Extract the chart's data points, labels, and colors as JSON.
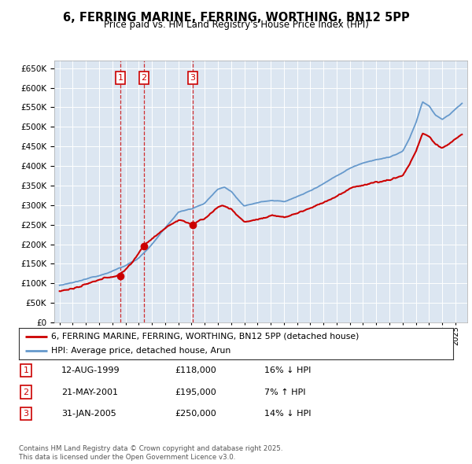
{
  "title": "6, FERRING MARINE, FERRING, WORTHING, BN12 5PP",
  "subtitle": "Price paid vs. HM Land Registry's House Price Index (HPI)",
  "legend_line1": "6, FERRING MARINE, FERRING, WORTHING, BN12 5PP (detached house)",
  "legend_line2": "HPI: Average price, detached house, Arun",
  "footnote": "Contains HM Land Registry data © Crown copyright and database right 2025.\nThis data is licensed under the Open Government Licence v3.0.",
  "sale_color": "#cc0000",
  "hpi_color": "#6699cc",
  "plot_bg": "#dce6f1",
  "ylim": [
    0,
    670000
  ],
  "yticks": [
    0,
    50000,
    100000,
    150000,
    200000,
    250000,
    300000,
    350000,
    400000,
    450000,
    500000,
    550000,
    600000,
    650000
  ],
  "xlim_left": 1994.6,
  "xlim_right": 2025.9,
  "sales": [
    {
      "num": 1,
      "date_x": 1999.61,
      "price": 118000,
      "label": "1"
    },
    {
      "num": 2,
      "date_x": 2001.39,
      "price": 195000,
      "label": "2"
    },
    {
      "num": 3,
      "date_x": 2005.08,
      "price": 250000,
      "label": "3"
    }
  ],
  "table_data": [
    [
      "1",
      "12-AUG-1999",
      "£118,000",
      "16% ↓ HPI"
    ],
    [
      "2",
      "21-MAY-2001",
      "£195,000",
      "7% ↑ HPI"
    ],
    [
      "3",
      "31-JAN-2005",
      "£250,000",
      "14% ↓ HPI"
    ]
  ]
}
